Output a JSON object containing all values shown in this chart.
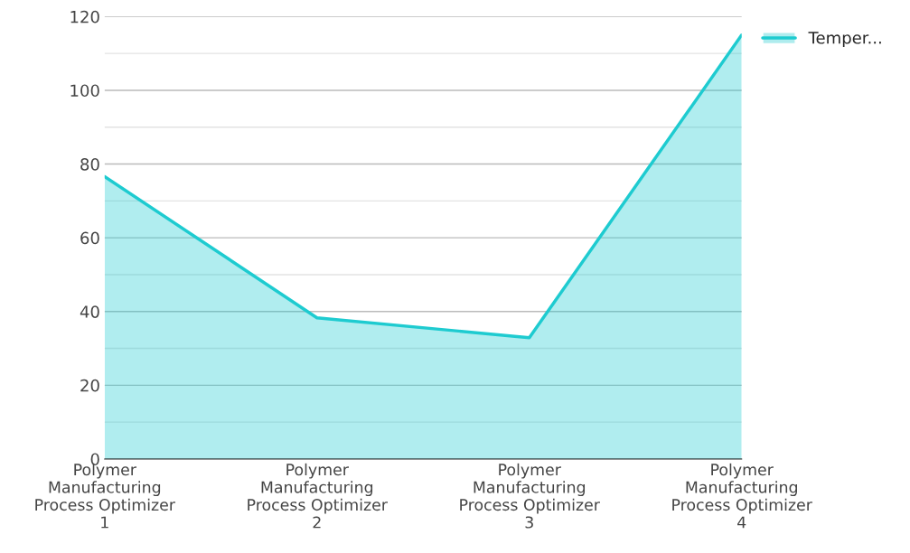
{
  "chart_data": {
    "type": "area",
    "categories": [
      "Polymer\nManufacturing\nProcess Optimizer\n1",
      "Polymer\nManufacturing\nProcess Optimizer\n2",
      "Polymer\nManufacturing\nProcess Optimizer\n3",
      "Polymer\nManufacturing\nProcess Optimizer\n4"
    ],
    "series": [
      {
        "name": "Temper...",
        "color": "#1ecbd0",
        "values": [
          76.6,
          38.3,
          32.9,
          115
        ]
      }
    ],
    "ylim": [
      0,
      120
    ],
    "yticks": [
      0,
      {
        "value": 10,
        "label": null
      },
      20,
      {
        "value": 30,
        "label": null
      },
      40,
      {
        "value": 50,
        "label": null
      },
      60,
      {
        "value": 70,
        "label": null
      },
      80,
      {
        "value": 90,
        "label": null
      },
      100,
      {
        "value": 110,
        "label": null
      },
      120
    ],
    "grid": "y",
    "legend": "top right",
    "marker": "none",
    "line_style": "solid"
  }
}
